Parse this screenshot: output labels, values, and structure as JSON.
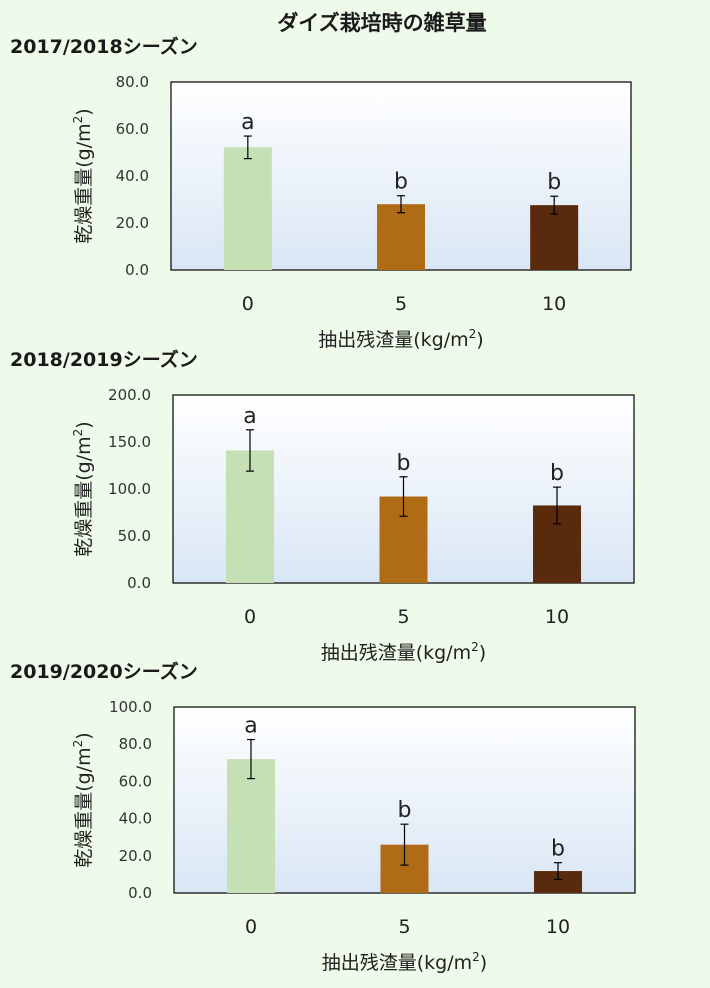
{
  "page": {
    "title": "ダイズ栽培時の雑草量"
  },
  "colors": {
    "page_background": "#eefbea",
    "plot_gradient_top": "#ffffff",
    "plot_gradient_bottom": "#d9e6f5",
    "bar_0": "#c5e0b4",
    "bar_5": "#b06b17",
    "bar_10": "#5a2a0c",
    "error_bar": "#000000"
  },
  "chart_data": [
    {
      "type": "bar",
      "title": "2017/2018シーズン",
      "xlabel": "抽出残渣量(kg/m",
      "xlabel_sup": "2",
      "xlabel_end": ")",
      "ylabel": "乾燥重量(g/m",
      "ylabel_sup": "2",
      "ylabel_end": ")",
      "categories": [
        "0",
        "5",
        "10"
      ],
      "values": [
        52.2,
        28.0,
        27.6
      ],
      "errors": [
        4.8,
        3.6,
        3.8
      ],
      "significance": [
        "a",
        "b",
        "b"
      ],
      "ylim": [
        0,
        80
      ],
      "yticks": [
        0,
        20,
        40,
        60,
        80
      ],
      "ytick_labels": [
        "0.0",
        "20.0",
        "40.0",
        "60.0",
        "80.0"
      ],
      "grid": false,
      "legend": "none"
    },
    {
      "type": "bar",
      "title": "2018/2019シーズン",
      "xlabel": "抽出残渣量(kg/m",
      "xlabel_sup": "2",
      "xlabel_end": ")",
      "ylabel": "乾燥重量(g/m",
      "ylabel_sup": "2",
      "ylabel_end": ")",
      "categories": [
        "0",
        "5",
        "10"
      ],
      "values": [
        141.0,
        92.0,
        82.5
      ],
      "errors": [
        22.0,
        21.0,
        19.5
      ],
      "significance": [
        "a",
        "b",
        "b"
      ],
      "ylim": [
        0,
        200
      ],
      "yticks": [
        0,
        50,
        100,
        150,
        200
      ],
      "ytick_labels": [
        "0.0",
        "50.0",
        "100.0",
        "150.0",
        "200.0"
      ],
      "grid": false,
      "legend": "none"
    },
    {
      "type": "bar",
      "title": "2019/2020シーズン",
      "xlabel": "抽出残渣量(kg/m",
      "xlabel_sup": "2",
      "xlabel_end": ")",
      "ylabel": "乾燥重量(g/m",
      "ylabel_sup": "2",
      "ylabel_end": ")",
      "categories": [
        "0",
        "5",
        "10"
      ],
      "values": [
        72.0,
        26.0,
        11.8
      ],
      "errors": [
        10.5,
        11.0,
        4.5
      ],
      "significance": [
        "a",
        "b",
        "b"
      ],
      "ylim": [
        0,
        100
      ],
      "yticks": [
        0,
        20,
        40,
        60,
        80,
        100
      ],
      "ytick_labels": [
        "0.0",
        "20.0",
        "40.0",
        "60.0",
        "80.0",
        "100.0"
      ],
      "grid": false,
      "legend": "none"
    }
  ]
}
